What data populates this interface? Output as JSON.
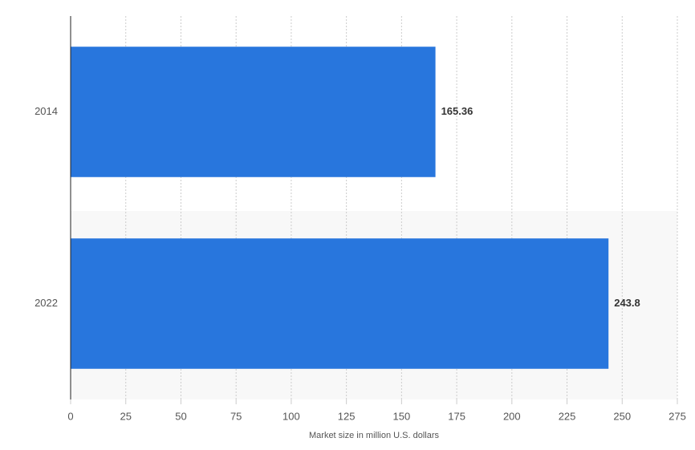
{
  "chart_data": {
    "type": "bar",
    "orientation": "horizontal",
    "x_label": "Market size in million U.S. dollars",
    "categories": [
      "2014",
      "2022"
    ],
    "values": [
      165.36,
      243.8
    ],
    "color": "#2876dd",
    "xlim": [
      0,
      275
    ],
    "xticks": [
      0,
      25,
      50,
      75,
      100,
      125,
      150,
      175,
      200,
      225,
      250,
      275
    ],
    "grid": true
  }
}
